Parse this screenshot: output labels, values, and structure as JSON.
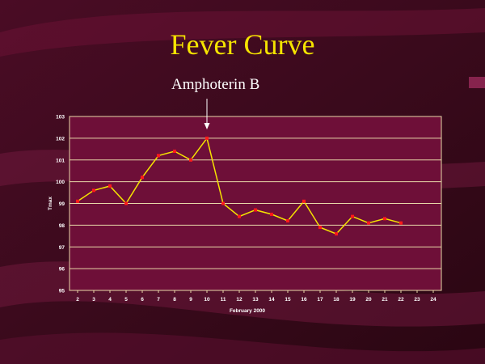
{
  "slide": {
    "title": "Fever Curve",
    "annotation": "Amphoterin B"
  },
  "colors": {
    "background": "#3a0a1c",
    "plot_area": "#6e0f38",
    "grid": "#e8d8a8",
    "line": "#f5e400",
    "marker": "#ff1a1a",
    "title": "#f5e400",
    "text": "#ffffff"
  },
  "chart_data": {
    "type": "line",
    "xlabel": "February 2000",
    "ylabel": "Tmax",
    "xlim": [
      2,
      24
    ],
    "ylim": [
      95,
      103
    ],
    "x_ticks": [
      "2",
      "3",
      "4",
      "5",
      "6",
      "7",
      "8",
      "9",
      "10",
      "11",
      "12",
      "13",
      "14",
      "15",
      "16",
      "17",
      "18",
      "19",
      "20",
      "21",
      "22",
      "23",
      "24"
    ],
    "y_ticks": [
      "95",
      "96",
      "97",
      "98",
      "99",
      "100",
      "101",
      "102",
      "103"
    ],
    "grid": true,
    "legend": "none",
    "series": [
      {
        "x": [
          2,
          3,
          4,
          5,
          6,
          7,
          8,
          9,
          10,
          11,
          12,
          13,
          14,
          15,
          16,
          17,
          18,
          19,
          20,
          21,
          22
        ],
        "y": [
          99.1,
          99.6,
          99.8,
          99.0,
          100.2,
          101.2,
          101.4,
          101.0,
          102.0,
          99.0,
          98.4,
          98.7,
          98.5,
          98.2,
          99.1,
          97.9,
          97.6,
          98.4,
          98.1,
          98.3,
          98.1
        ]
      }
    ],
    "annotation": {
      "text": "Amphoterin B",
      "x": 10
    }
  }
}
